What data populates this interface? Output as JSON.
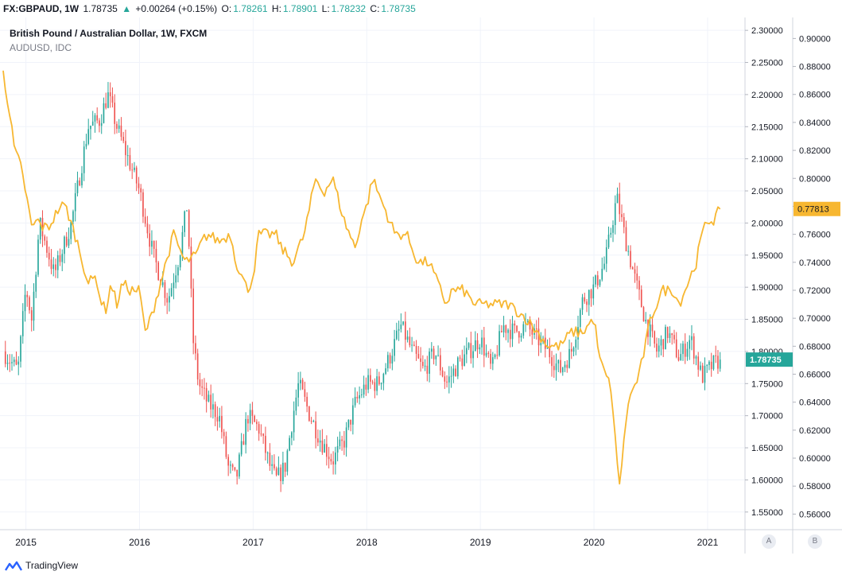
{
  "toolbar": {
    "symbol": "FX:GBPAUD, 1W",
    "last": "1.78735",
    "change_arrow": "▲",
    "change": "+0.00264 (+0.15%)",
    "o_label": "O:",
    "o_value": "1.78261",
    "h_label": "H:",
    "h_value": "1.78901",
    "l_label": "L:",
    "l_value": "1.78232",
    "c_label": "C:",
    "c_value": "1.78735"
  },
  "legend": {
    "main": "British Pound / Australian Dollar, 1W, FXCM",
    "overlay": "AUDUSD, IDC"
  },
  "scale_buttons": {
    "a": "A",
    "b": "B"
  },
  "footer": {
    "brand": "TradingView"
  },
  "colors": {
    "up": "#26a69a",
    "down": "#ef5350",
    "overlay_line": "#f7b731",
    "grid": "#f0f3fa",
    "price_tag": "#26a69a",
    "overlay_tag": "#f7b731"
  },
  "chart_data": {
    "type": "candlestick+line",
    "title": "British Pound / Australian Dollar, 1W, FXCM",
    "x_tick_labels": [
      "2015",
      "2016",
      "2017",
      "2018",
      "2019",
      "2020",
      "2021"
    ],
    "x_ticks_years": [
      2015,
      2016,
      2017,
      2018,
      2019,
      2020,
      2021
    ],
    "x_range": [
      2014.8,
      2021.28
    ],
    "y_left_scale": {
      "name": "GBPAUD",
      "range": [
        1.525,
        2.32
      ],
      "ticks": [
        2.3,
        2.25,
        2.2,
        2.15,
        2.1,
        2.05,
        2.0,
        1.95,
        1.9,
        1.85,
        1.8,
        1.75,
        1.7,
        1.65,
        1.6,
        1.55
      ],
      "tick_labels": [
        "2.30000",
        "2.25000",
        "2.20000",
        "2.15000",
        "2.10000",
        "2.05000",
        "2.00000",
        "1.95000",
        "1.90000",
        "1.85000",
        "1.80000",
        "1.75000",
        "1.70000",
        "1.65000",
        "1.60000",
        "1.55000"
      ]
    },
    "y_right_scale": {
      "name": "AUDUSD",
      "range": [
        0.55,
        0.915
      ],
      "ticks": [
        0.9,
        0.88,
        0.86,
        0.84,
        0.82,
        0.8,
        0.78,
        0.76,
        0.74,
        0.72,
        0.7,
        0.68,
        0.66,
        0.64,
        0.62,
        0.6,
        0.58,
        0.56
      ],
      "tick_labels": [
        "0.90000",
        "0.88000",
        "0.86000",
        "0.84000",
        "0.82000",
        "0.80000",
        "0.78000",
        "0.76000",
        "0.74000",
        "0.72000",
        "0.70000",
        "0.68000",
        "0.66000",
        "0.64000",
        "0.62000",
        "0.60000",
        "0.58000",
        "0.56000"
      ]
    },
    "gbpaud_anchors": [
      [
        2014.8,
        1.8
      ],
      [
        2014.93,
        1.77
      ],
      [
        2015.0,
        1.9
      ],
      [
        2015.05,
        1.85
      ],
      [
        2015.12,
        2.0
      ],
      [
        2015.25,
        1.92
      ],
      [
        2015.4,
        2.0
      ],
      [
        2015.55,
        2.15
      ],
      [
        2015.65,
        2.16
      ],
      [
        2015.72,
        2.2
      ],
      [
        2015.8,
        2.15
      ],
      [
        2015.9,
        2.1
      ],
      [
        2016.0,
        2.05
      ],
      [
        2016.12,
        1.95
      ],
      [
        2016.25,
        1.88
      ],
      [
        2016.35,
        1.95
      ],
      [
        2016.42,
        2.03
      ],
      [
        2016.47,
        1.82
      ],
      [
        2016.52,
        1.75
      ],
      [
        2016.6,
        1.72
      ],
      [
        2016.7,
        1.7
      ],
      [
        2016.78,
        1.62
      ],
      [
        2016.85,
        1.6
      ],
      [
        2016.95,
        1.7
      ],
      [
        2017.05,
        1.68
      ],
      [
        2017.15,
        1.62
      ],
      [
        2017.2,
        1.6
      ],
      [
        2017.28,
        1.62
      ],
      [
        2017.35,
        1.7
      ],
      [
        2017.4,
        1.75
      ],
      [
        2017.5,
        1.7
      ],
      [
        2017.6,
        1.66
      ],
      [
        2017.7,
        1.63
      ],
      [
        2017.8,
        1.66
      ],
      [
        2017.9,
        1.72
      ],
      [
        2018.0,
        1.75
      ],
      [
        2018.1,
        1.75
      ],
      [
        2018.2,
        1.79
      ],
      [
        2018.3,
        1.84
      ],
      [
        2018.4,
        1.8
      ],
      [
        2018.5,
        1.77
      ],
      [
        2018.6,
        1.8
      ],
      [
        2018.7,
        1.75
      ],
      [
        2018.8,
        1.78
      ],
      [
        2018.9,
        1.8
      ],
      [
        2019.0,
        1.82
      ],
      [
        2019.1,
        1.77
      ],
      [
        2019.2,
        1.84
      ],
      [
        2019.3,
        1.83
      ],
      [
        2019.4,
        1.84
      ],
      [
        2019.5,
        1.82
      ],
      [
        2019.6,
        1.8
      ],
      [
        2019.7,
        1.77
      ],
      [
        2019.8,
        1.8
      ],
      [
        2019.9,
        1.88
      ],
      [
        2020.0,
        1.9
      ],
      [
        2020.1,
        1.94
      ],
      [
        2020.2,
        2.04
      ],
      [
        2020.27,
        1.98
      ],
      [
        2020.35,
        1.92
      ],
      [
        2020.45,
        1.85
      ],
      [
        2020.55,
        1.8
      ],
      [
        2020.65,
        1.83
      ],
      [
        2020.75,
        1.79
      ],
      [
        2020.85,
        1.82
      ],
      [
        2020.95,
        1.76
      ],
      [
        2021.05,
        1.78
      ],
      [
        2021.11,
        1.787
      ]
    ],
    "audusd_anchors": [
      [
        2014.8,
        0.877
      ],
      [
        2014.85,
        0.85
      ],
      [
        2014.9,
        0.82
      ],
      [
        2014.95,
        0.81
      ],
      [
        2015.0,
        0.79
      ],
      [
        2015.05,
        0.765
      ],
      [
        2015.1,
        0.77
      ],
      [
        2015.15,
        0.765
      ],
      [
        2015.2,
        0.765
      ],
      [
        2015.3,
        0.78
      ],
      [
        2015.35,
        0.78
      ],
      [
        2015.45,
        0.755
      ],
      [
        2015.5,
        0.74
      ],
      [
        2015.55,
        0.725
      ],
      [
        2015.62,
        0.73
      ],
      [
        2015.65,
        0.715
      ],
      [
        2015.7,
        0.705
      ],
      [
        2015.75,
        0.725
      ],
      [
        2015.8,
        0.71
      ],
      [
        2015.85,
        0.725
      ],
      [
        2015.92,
        0.72
      ],
      [
        2016.0,
        0.72
      ],
      [
        2016.05,
        0.69
      ],
      [
        2016.1,
        0.7
      ],
      [
        2016.2,
        0.73
      ],
      [
        2016.3,
        0.76
      ],
      [
        2016.35,
        0.75
      ],
      [
        2016.4,
        0.74
      ],
      [
        2016.5,
        0.745
      ],
      [
        2016.55,
        0.755
      ],
      [
        2016.6,
        0.76
      ],
      [
        2016.7,
        0.755
      ],
      [
        2016.8,
        0.76
      ],
      [
        2016.85,
        0.74
      ],
      [
        2016.95,
        0.72
      ],
      [
        2017.0,
        0.73
      ],
      [
        2017.05,
        0.76
      ],
      [
        2017.2,
        0.76
      ],
      [
        2017.25,
        0.75
      ],
      [
        2017.35,
        0.74
      ],
      [
        2017.45,
        0.76
      ],
      [
        2017.55,
        0.8
      ],
      [
        2017.62,
        0.79
      ],
      [
        2017.7,
        0.8
      ],
      [
        2017.8,
        0.77
      ],
      [
        2017.9,
        0.75
      ],
      [
        2017.95,
        0.77
      ],
      [
        2018.0,
        0.78
      ],
      [
        2018.05,
        0.8
      ],
      [
        2018.1,
        0.79
      ],
      [
        2018.15,
        0.78
      ],
      [
        2018.25,
        0.76
      ],
      [
        2018.35,
        0.76
      ],
      [
        2018.45,
        0.74
      ],
      [
        2018.55,
        0.74
      ],
      [
        2018.65,
        0.72
      ],
      [
        2018.7,
        0.71
      ],
      [
        2018.75,
        0.72
      ],
      [
        2018.85,
        0.72
      ],
      [
        2018.95,
        0.71
      ],
      [
        2019.05,
        0.71
      ],
      [
        2019.15,
        0.71
      ],
      [
        2019.25,
        0.71
      ],
      [
        2019.4,
        0.7
      ],
      [
        2019.5,
        0.69
      ],
      [
        2019.6,
        0.68
      ],
      [
        2019.7,
        0.68
      ],
      [
        2019.8,
        0.69
      ],
      [
        2019.9,
        0.69
      ],
      [
        2020.0,
        0.7
      ],
      [
        2020.05,
        0.67
      ],
      [
        2020.1,
        0.66
      ],
      [
        2020.15,
        0.65
      ],
      [
        2020.2,
        0.6
      ],
      [
        2020.22,
        0.58
      ],
      [
        2020.25,
        0.6
      ],
      [
        2020.3,
        0.64
      ],
      [
        2020.4,
        0.66
      ],
      [
        2020.5,
        0.7
      ],
      [
        2020.6,
        0.72
      ],
      [
        2020.7,
        0.72
      ],
      [
        2020.75,
        0.71
      ],
      [
        2020.8,
        0.72
      ],
      [
        2020.9,
        0.74
      ],
      [
        2020.95,
        0.76
      ],
      [
        2021.0,
        0.77
      ],
      [
        2021.05,
        0.77
      ],
      [
        2021.11,
        0.7781
      ]
    ],
    "last_price_gbpaud": "1.78735",
    "last_price_audusd": "0.77813",
    "candles_per_year": 52
  }
}
